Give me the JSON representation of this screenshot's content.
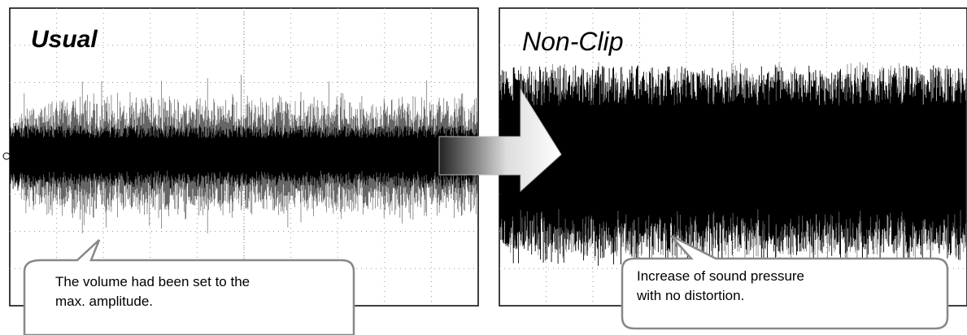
{
  "panels": [
    {
      "label": "Usual",
      "callout": [
        "The volume had been set to the",
        "max. amplitude."
      ]
    },
    {
      "label": "Non-Clip",
      "callout": [
        "Increase of sound pressure",
        "with no distortion."
      ]
    }
  ]
}
